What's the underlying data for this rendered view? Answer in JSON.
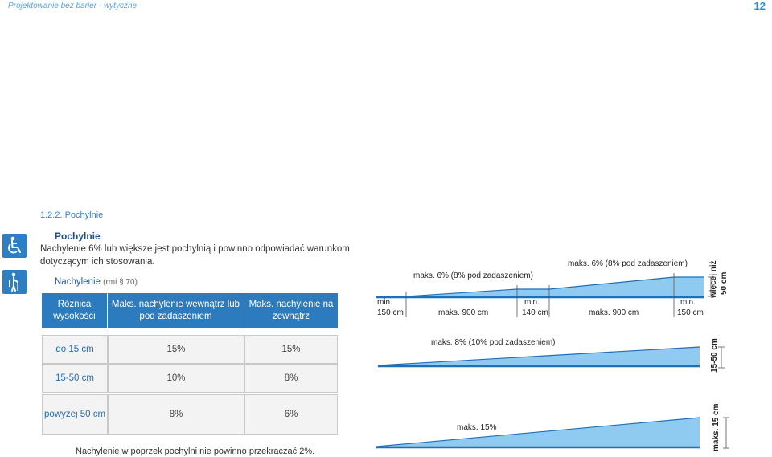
{
  "header": {
    "left_text": "Projektowanie bez barier - wytyczne",
    "page_number": "12"
  },
  "section_heading": "1.2.2. Pochylnie",
  "icons": [
    "wheelchair-icon",
    "cane-person-icon"
  ],
  "title": "Pochylnie",
  "intro": "Nachylenie 6% lub większe jest pochylnią i powinno odpowiadać warunkom dotyczącym ich stosowania.",
  "subheading": {
    "main": "Nachylenie",
    "ref": "(rmi § 70)"
  },
  "table": {
    "headers": [
      "Różnica wysokości",
      "Maks. nachylenie wewnątrz lub pod zadaszeniem",
      "Maks. nachylenie na zewnątrz"
    ],
    "rows": [
      [
        "do 15 cm",
        "15%",
        "15%"
      ],
      [
        "15-50 cm",
        "10%",
        "8%"
      ],
      [
        "powyżej 50 cm",
        "8%",
        "6%"
      ]
    ]
  },
  "footnote": "Nachylenie w poprzek pochylni nie powinno przekraczać 2%.",
  "diagrams": {
    "top": {
      "slope1": "maks. 6% (8% pod zadaszeniem)",
      "slope2": "maks. 6% (8% pod zadaszeniem)",
      "landing1_a": "min.",
      "landing1_b": "150 cm",
      "run1": "maks. 900 cm",
      "landing2_a": "min.",
      "landing2_b": "140 cm",
      "run2": "maks. 900 cm",
      "landing3_a": "min.",
      "landing3_b": "150 cm",
      "height_a": "więcej niż",
      "height_b": "50 cm"
    },
    "middle": {
      "slope": "maks. 8% (10% pod zadaszeniem)",
      "height": "15-50 cm"
    },
    "bottom": {
      "slope": "maks. 15%",
      "height": "maks. 15 cm"
    }
  },
  "colors": {
    "accent": "#2c7bbf",
    "ramp_fill": "#8fcbf0",
    "ramp_stroke": "#1f6fb8"
  }
}
